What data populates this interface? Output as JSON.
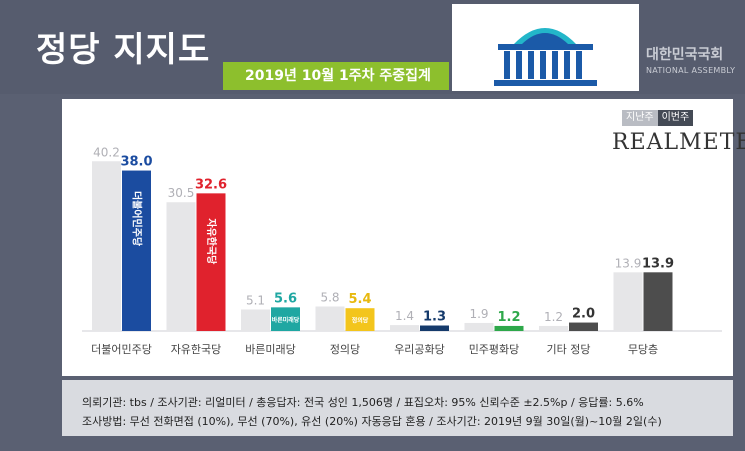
{
  "header": {
    "title": "정당 지지도",
    "ribbon": "2019년 10월 1주차 주중집계",
    "assembly_ko": "대한민국국회",
    "assembly_en": "NATIONAL ASSEMBLY"
  },
  "legend": {
    "prev": "지난주",
    "current": "이번주"
  },
  "brand": "REALMETER",
  "chart_data": {
    "type": "bar",
    "categories": [
      "더불어민주당",
      "자유한국당",
      "바른미래당",
      "정의당",
      "우리공화당",
      "민주평화당",
      "기타 정당",
      "무당층"
    ],
    "series": [
      {
        "name": "지난주",
        "values": [
          40.2,
          30.5,
          5.1,
          5.8,
          1.4,
          1.9,
          1.2,
          13.9
        ]
      },
      {
        "name": "이번주",
        "values": [
          38.0,
          32.6,
          5.6,
          5.4,
          1.3,
          1.2,
          2.0,
          13.9
        ]
      }
    ],
    "value_labels": {
      "prev": [
        "40.2",
        "30.5",
        "5.1",
        "5.8",
        "1.4",
        "1.9",
        "1.2",
        "13.9"
      ],
      "current": [
        "38.0",
        "32.6",
        "5.6",
        "5.4",
        "1.3",
        "1.2",
        "2.0",
        "13.9"
      ]
    },
    "bar_logos": [
      "더불어민주당",
      "자유한국당",
      "바른미래당",
      "정의당",
      "",
      "",
      "",
      ""
    ],
    "colors": {
      "prev": "#e6e6e8",
      "current": [
        "#1b4ca0",
        "#e0222d",
        "#1fa7a2",
        "#f3c51c",
        "#153a6b",
        "#2ea84a",
        "#4d4d4d",
        "#4d4d4d"
      ],
      "current_label": [
        "#1b4ca0",
        "#e0222d",
        "#1fa7a2",
        "#e8b90e",
        "#153a6b",
        "#2ea84a",
        "#333333",
        "#333333"
      ]
    },
    "ylim": [
      0,
      45
    ],
    "legend_position": "top-right"
  },
  "footer": {
    "line1": "의뢰기관: tbs / 조사기관: 리얼미터 / 총응답자: 전국 성인 1,506명 / 표집오차: 95% 신뢰수준 ±2.5%p / 응답률: 5.6%",
    "line2": "조사방법: 무선 전화면접 (10%), 무선 (70%), 유선 (20%) 자동응답 혼용 / 조사기간: 2019년 9월 30일(월)~10월 2일(수)"
  }
}
